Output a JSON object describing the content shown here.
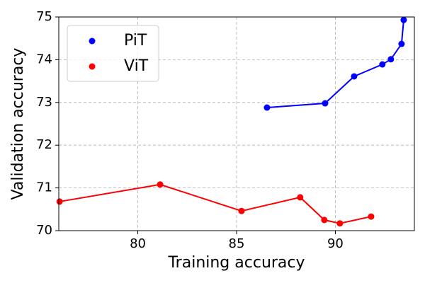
{
  "chart_data": {
    "type": "line",
    "x_label": "Training accuracy",
    "y_label": "Validation accuracy",
    "xlim": [
      76,
      94
    ],
    "ylim": [
      70,
      75
    ],
    "xticks": [
      80,
      85,
      90
    ],
    "yticks": [
      70,
      71,
      72,
      73,
      74,
      75
    ],
    "grid": true,
    "legend": "upper left",
    "markers": true,
    "series": [
      {
        "name": "PiT",
        "color": "#0000ff",
        "x": [
          86.54,
          89.48,
          90.95,
          92.38,
          92.81,
          93.35,
          93.46
        ],
        "values": [
          72.88,
          72.98,
          73.61,
          73.89,
          74.01,
          74.37,
          74.93
        ]
      },
      {
        "name": "ViT",
        "color": "#ff0000",
        "x": [
          76.04,
          81.13,
          85.25,
          88.22,
          89.44,
          90.23,
          91.81
        ],
        "values": [
          70.68,
          71.08,
          70.46,
          70.78,
          70.25,
          70.17,
          70.33
        ]
      }
    ]
  }
}
